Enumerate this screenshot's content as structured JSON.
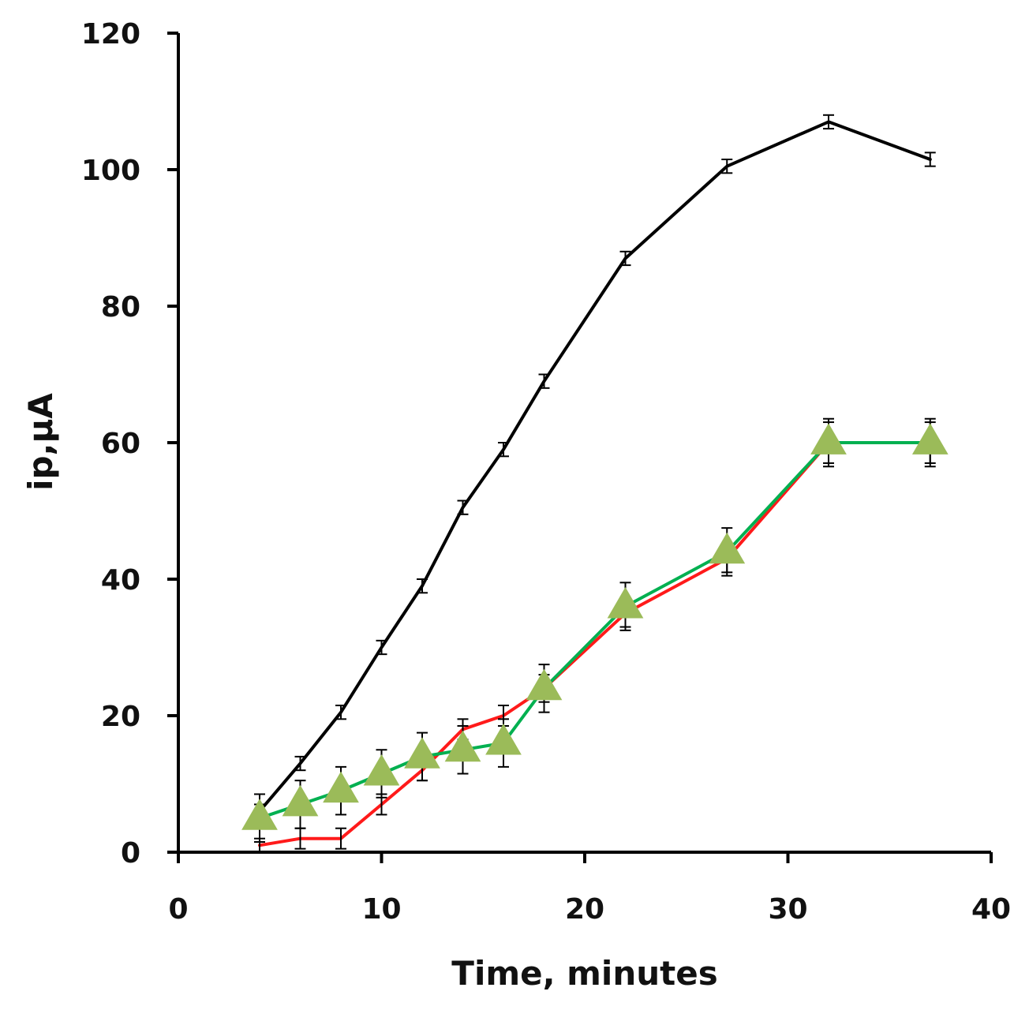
{
  "chart_data": {
    "type": "line",
    "title": "",
    "xlabel": "Time, minutes",
    "ylabel": "ip,µA",
    "xlim": [
      0,
      40
    ],
    "ylim": [
      0,
      120
    ],
    "xticks": [
      0,
      10,
      20,
      30,
      40
    ],
    "yticks": [
      0,
      20,
      40,
      60,
      80,
      100,
      120
    ],
    "grid": false,
    "legend": "none",
    "x": [
      4,
      6,
      8,
      10,
      12,
      14,
      16,
      18,
      22,
      27,
      32,
      37
    ],
    "series": [
      {
        "name": "black series",
        "color": "#000000",
        "marker": "none",
        "values": [
          6,
          13,
          20.5,
          30,
          39,
          50.5,
          59,
          69,
          87,
          100.5,
          107,
          101.5
        ],
        "errors": [
          1,
          1,
          1,
          1,
          1,
          1,
          1,
          1,
          1,
          1,
          1,
          1
        ]
      },
      {
        "name": "red series",
        "color": "#ff1a1a",
        "marker": "none",
        "values": [
          1,
          2,
          2,
          7,
          12,
          18,
          20,
          24,
          35,
          43,
          60,
          60
        ],
        "errors": [
          1,
          1.5,
          1.5,
          1.5,
          1.5,
          1.5,
          1.5,
          2,
          2,
          2,
          3,
          3
        ]
      },
      {
        "name": "green series",
        "color": "#00b050",
        "marker": "triangle",
        "markerColor": "#9bbb59",
        "values": [
          5,
          7,
          9,
          11.5,
          14,
          15,
          16,
          24,
          36,
          44,
          60,
          60
        ],
        "errors": [
          3.5,
          3.5,
          3.5,
          3.5,
          3.5,
          3.5,
          3.5,
          3.5,
          3.5,
          3.5,
          3.5,
          3.5
        ]
      }
    ]
  }
}
